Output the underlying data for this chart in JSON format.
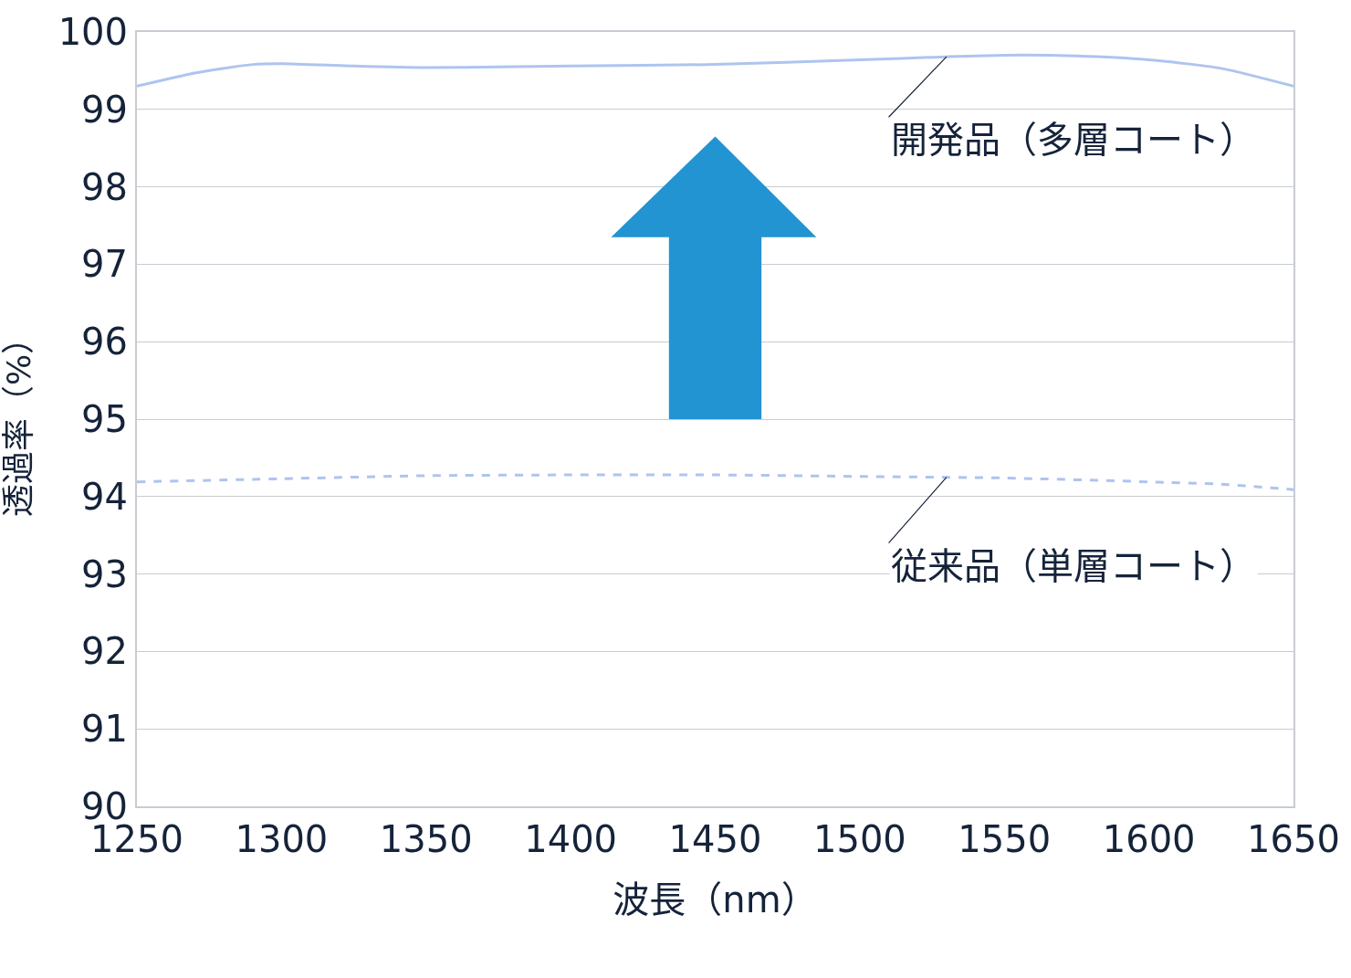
{
  "chart_data": {
    "type": "line",
    "xlabel": "波長（nm）",
    "ylabel": "透過率（%）",
    "xlim": [
      1250,
      1650
    ],
    "xticks": [
      1250,
      1300,
      1350,
      1400,
      1450,
      1500,
      1550,
      1600,
      1650
    ],
    "ylim": [
      90,
      100
    ],
    "yticks": [
      90,
      91,
      92,
      93,
      94,
      95,
      96,
      97,
      98,
      99,
      100
    ],
    "grid": "y",
    "marker": "none",
    "series": [
      {
        "color": "#aec4f0",
        "line_style": "solid",
        "x": [
          1250,
          1270,
          1290,
          1300,
          1325,
          1350,
          1400,
          1450,
          1500,
          1530,
          1550,
          1575,
          1600,
          1625,
          1650
        ],
        "values": [
          99.3,
          99.47,
          99.58,
          99.59,
          99.56,
          99.54,
          99.56,
          99.58,
          99.64,
          99.68,
          99.7,
          99.69,
          99.64,
          99.53,
          99.3
        ]
      },
      {
        "color": "#aec4f0",
        "line_style": "dashed",
        "x": [
          1250,
          1300,
          1350,
          1400,
          1450,
          1500,
          1550,
          1600,
          1625,
          1650
        ],
        "values": [
          94.19,
          94.23,
          94.27,
          94.28,
          94.28,
          94.26,
          94.24,
          94.19,
          94.16,
          94.09
        ]
      }
    ],
    "annotations": [
      {
        "text": "開発品（多層コート）",
        "x": 1530,
        "y": 99.68
      },
      {
        "text": "従来品（単層コート）",
        "x": 1530,
        "y": 94.25
      }
    ]
  }
}
